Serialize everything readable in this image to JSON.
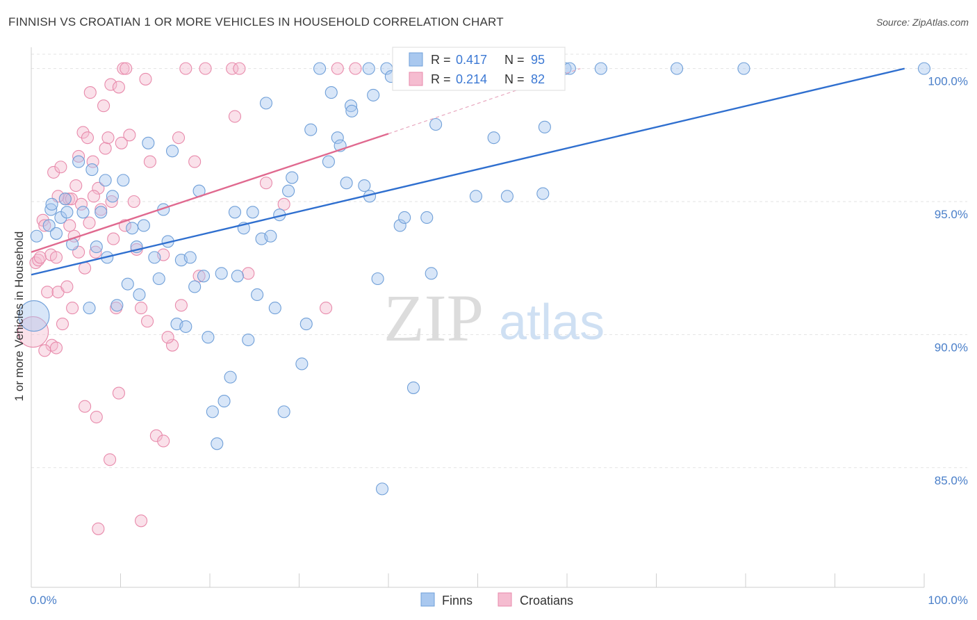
{
  "title": "FINNISH VS CROATIAN 1 OR MORE VEHICLES IN HOUSEHOLD CORRELATION CHART",
  "source": "Source: ZipAtlas.com",
  "watermark": {
    "zip": "ZIP",
    "atlas": "atlas"
  },
  "legend_box": {
    "rows": [
      {
        "r_label": "R = ",
        "r_value": "0.417",
        "n_label": "N = ",
        "n_value": "95"
      },
      {
        "r_label": "R = ",
        "r_value": "0.214",
        "n_label": "N = ",
        "n_value": "82"
      }
    ]
  },
  "bottom_legend": {
    "items": [
      "Finns",
      "Croatians"
    ]
  },
  "colors": {
    "finns_fill": "#a9c8ef",
    "finns_stroke": "#6f9fd8",
    "finns_line": "#2f6fcf",
    "croatians_fill": "#f5bcd0",
    "croatians_stroke": "#e88aab",
    "croatians_line": "#e0698f",
    "tick_label": "#4a7fc9",
    "grid": "#e3e3e3"
  },
  "chart_data": {
    "type": "scatter",
    "xlabel": "",
    "ylabel": "1 or more Vehicles in Household",
    "xlim": [
      0,
      100
    ],
    "ylim": [
      80.5,
      100.8
    ],
    "x_tick_labels": [
      "0.0%",
      "100.0%"
    ],
    "y_ticks": [
      85,
      90,
      95,
      100
    ],
    "y_tick_labels": [
      "85.0%",
      "90.0%",
      "95.0%",
      "100.0%"
    ],
    "grid": "horizontal dashed",
    "legend": "top-center",
    "series": [
      {
        "name": "Finns",
        "R": 0.417,
        "N": 95,
        "trend": {
          "x": [
            0,
            97.8
          ],
          "y": [
            92.25,
            100.0
          ]
        },
        "points": [
          [
            0.6,
            93.7
          ],
          [
            2.0,
            94.1
          ],
          [
            2.2,
            94.7
          ],
          [
            2.3,
            94.9
          ],
          [
            2.8,
            93.8
          ],
          [
            3.3,
            94.4
          ],
          [
            3.8,
            95.1
          ],
          [
            4.0,
            94.6
          ],
          [
            4.6,
            93.4
          ],
          [
            5.3,
            96.5
          ],
          [
            5.8,
            94.6
          ],
          [
            6.5,
            91.0
          ],
          [
            6.8,
            96.2
          ],
          [
            7.3,
            93.3
          ],
          [
            7.8,
            94.6
          ],
          [
            8.3,
            95.8
          ],
          [
            8.5,
            92.9
          ],
          [
            9.1,
            95.2
          ],
          [
            9.6,
            91.1
          ],
          [
            10.3,
            95.8
          ],
          [
            10.8,
            91.9
          ],
          [
            11.3,
            94.0
          ],
          [
            11.8,
            93.3
          ],
          [
            12.1,
            91.5
          ],
          [
            12.6,
            94.1
          ],
          [
            13.1,
            97.2
          ],
          [
            13.8,
            92.9
          ],
          [
            14.3,
            92.1
          ],
          [
            14.8,
            94.7
          ],
          [
            15.3,
            93.5
          ],
          [
            15.8,
            96.9
          ],
          [
            16.3,
            90.4
          ],
          [
            16.8,
            92.8
          ],
          [
            17.3,
            90.3
          ],
          [
            17.8,
            92.9
          ],
          [
            18.3,
            91.8
          ],
          [
            18.8,
            95.4
          ],
          [
            19.3,
            92.2
          ],
          [
            19.8,
            89.9
          ],
          [
            20.3,
            87.1
          ],
          [
            20.8,
            85.9
          ],
          [
            21.3,
            92.3
          ],
          [
            21.6,
            87.5
          ],
          [
            22.3,
            88.4
          ],
          [
            22.8,
            94.6
          ],
          [
            23.1,
            92.2
          ],
          [
            23.8,
            94.0
          ],
          [
            24.3,
            89.8
          ],
          [
            24.8,
            94.6
          ],
          [
            25.3,
            91.5
          ],
          [
            25.8,
            93.6
          ],
          [
            26.3,
            98.7
          ],
          [
            26.8,
            93.7
          ],
          [
            27.3,
            91.0
          ],
          [
            27.8,
            94.5
          ],
          [
            28.3,
            87.1
          ],
          [
            28.8,
            95.4
          ],
          [
            29.2,
            95.9
          ],
          [
            30.3,
            88.9
          ],
          [
            30.8,
            90.4
          ],
          [
            31.3,
            97.7
          ],
          [
            32.3,
            100.0
          ],
          [
            33.3,
            96.5
          ],
          [
            33.6,
            99.1
          ],
          [
            34.3,
            97.4
          ],
          [
            34.6,
            97.1
          ],
          [
            35.3,
            95.7
          ],
          [
            35.8,
            98.6
          ],
          [
            35.9,
            98.4
          ],
          [
            37.3,
            95.6
          ],
          [
            37.8,
            100.0
          ],
          [
            37.9,
            95.2
          ],
          [
            38.3,
            99.0
          ],
          [
            38.8,
            92.1
          ],
          [
            39.3,
            84.2
          ],
          [
            39.8,
            100.0
          ],
          [
            40.3,
            99.7
          ],
          [
            41.3,
            94.1
          ],
          [
            41.8,
            94.4
          ],
          [
            42.8,
            88.0
          ],
          [
            43.3,
            99.5
          ],
          [
            44.3,
            94.4
          ],
          [
            44.8,
            92.3
          ],
          [
            45.3,
            97.9
          ],
          [
            49.8,
            95.2
          ],
          [
            51.8,
            97.4
          ],
          [
            53.3,
            95.2
          ],
          [
            57.3,
            95.3
          ],
          [
            57.5,
            97.8
          ],
          [
            59.8,
            100.0
          ],
          [
            60.3,
            100.0
          ],
          [
            63.8,
            100.0
          ],
          [
            72.3,
            100.0
          ],
          [
            79.8,
            100.0
          ],
          [
            100.0,
            100.0
          ]
        ],
        "large_points": [
          [
            0.3,
            90.7
          ]
        ]
      },
      {
        "name": "Croatians",
        "R": 0.214,
        "N": 82,
        "trend": {
          "x": [
            0,
            40.0
          ],
          "y": [
            93.1,
            97.55
          ]
        },
        "trend_extension": {
          "x": [
            40.0,
            61.5
          ],
          "y": [
            97.55,
            100.0
          ]
        },
        "points": [
          [
            0.5,
            92.7
          ],
          [
            0.8,
            92.8
          ],
          [
            1.0,
            92.9
          ],
          [
            1.3,
            94.3
          ],
          [
            1.5,
            94.1
          ],
          [
            1.8,
            91.6
          ],
          [
            2.2,
            93.0
          ],
          [
            2.3,
            89.6
          ],
          [
            2.5,
            96.1
          ],
          [
            2.8,
            92.9
          ],
          [
            3.0,
            91.6
          ],
          [
            3.3,
            96.3
          ],
          [
            3.5,
            90.4
          ],
          [
            3.8,
            95.1
          ],
          [
            4.0,
            91.8
          ],
          [
            4.2,
            95.1
          ],
          [
            4.5,
            95.1
          ],
          [
            4.8,
            93.7
          ],
          [
            5.0,
            95.6
          ],
          [
            5.3,
            96.7
          ],
          [
            5.6,
            94.9
          ],
          [
            5.8,
            97.6
          ],
          [
            6.0,
            92.5
          ],
          [
            6.3,
            97.4
          ],
          [
            6.6,
            99.1
          ],
          [
            6.9,
            96.5
          ],
          [
            7.2,
            93.1
          ],
          [
            7.5,
            95.5
          ],
          [
            7.8,
            94.7
          ],
          [
            8.1,
            98.6
          ],
          [
            8.3,
            97.0
          ],
          [
            8.6,
            97.4
          ],
          [
            8.9,
            99.4
          ],
          [
            9.2,
            93.6
          ],
          [
            9.5,
            91.0
          ],
          [
            9.8,
            99.3
          ],
          [
            10.1,
            97.2
          ],
          [
            10.3,
            100.0
          ],
          [
            10.6,
            100.0
          ],
          [
            11.0,
            97.5
          ],
          [
            11.5,
            95.0
          ],
          [
            12.3,
            91.0
          ],
          [
            12.8,
            99.6
          ],
          [
            13.3,
            96.5
          ],
          [
            14.0,
            86.2
          ],
          [
            14.8,
            93.0
          ],
          [
            15.8,
            89.6
          ],
          [
            16.5,
            97.4
          ],
          [
            17.3,
            100.0
          ],
          [
            18.3,
            96.5
          ],
          [
            19.5,
            100.0
          ],
          [
            22.5,
            100.0
          ],
          [
            22.8,
            98.2
          ],
          [
            23.3,
            100.0
          ],
          [
            24.3,
            92.3
          ],
          [
            26.3,
            95.7
          ],
          [
            28.3,
            94.9
          ],
          [
            33.0,
            91.0
          ],
          [
            34.3,
            100.0
          ],
          [
            36.3,
            100.0
          ],
          [
            8.8,
            85.3
          ],
          [
            6.0,
            87.3
          ],
          [
            7.3,
            86.9
          ],
          [
            9.8,
            87.8
          ],
          [
            12.3,
            83.0
          ],
          [
            14.8,
            86.0
          ],
          [
            7.5,
            82.7
          ],
          [
            1.5,
            89.4
          ],
          [
            2.8,
            89.5
          ],
          [
            4.3,
            94.1
          ],
          [
            5.3,
            93.1
          ],
          [
            6.5,
            94.2
          ],
          [
            7.0,
            95.2
          ],
          [
            9.0,
            95.0
          ],
          [
            10.5,
            94.1
          ],
          [
            11.8,
            93.2
          ],
          [
            13.0,
            90.5
          ],
          [
            15.3,
            89.9
          ],
          [
            16.8,
            91.1
          ],
          [
            18.8,
            92.2
          ],
          [
            3.0,
            95.2
          ],
          [
            4.6,
            91.0
          ]
        ],
        "large_points": [
          [
            0.2,
            90.1
          ]
        ]
      }
    ]
  }
}
